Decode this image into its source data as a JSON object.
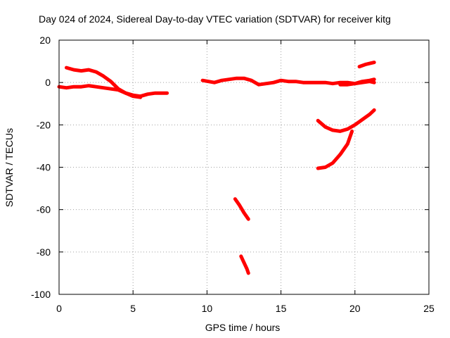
{
  "chart_data": {
    "type": "line",
    "title": "Day 024 of 2024, Sidereal Day-to-day VTEC variation (SDTVAR) for receiver kitg",
    "xlabel": "GPS time / hours",
    "ylabel": "SDTVAR / TECUs",
    "xlim": [
      0,
      25
    ],
    "ylim": [
      -100,
      20
    ],
    "xticks": [
      0,
      5,
      10,
      15,
      20,
      25
    ],
    "yticks": [
      -100,
      -80,
      -60,
      -40,
      -20,
      0,
      20
    ],
    "grid": true,
    "color": "#ff0000",
    "series": [
      {
        "x": [
          0.0,
          0.5,
          1.0,
          1.5,
          2.0,
          2.5,
          3.0,
          3.5,
          4.0,
          4.5,
          5.0,
          5.5,
          6.0,
          6.5,
          7.0,
          7.3
        ],
        "y": [
          -2,
          -2.5,
          -2,
          -2,
          -1.5,
          -2,
          -2.5,
          -3,
          -3.5,
          -5,
          -6,
          -6.5,
          -5.5,
          -5,
          -5,
          -5
        ]
      },
      {
        "x": [
          0.5,
          1.0,
          1.5,
          2.0,
          2.5,
          3.0,
          3.5,
          4.0,
          4.5,
          5.0,
          5.5
        ],
        "y": [
          7,
          6,
          5.5,
          6,
          5,
          3,
          0.5,
          -3,
          -5,
          -6.5,
          -7
        ]
      },
      {
        "x": [
          9.7,
          10.5,
          11.0,
          11.5,
          12.0,
          12.5,
          13.0,
          13.5,
          14.0,
          14.5,
          15.0,
          15.5,
          16.0,
          16.5,
          17.0,
          17.5,
          18.0,
          18.5,
          19.0,
          19.5,
          20.0,
          20.5,
          21.0,
          21.3
        ],
        "y": [
          1,
          0,
          1,
          1.5,
          2,
          2,
          1,
          -1,
          -0.5,
          0,
          1,
          0.5,
          0.5,
          0,
          0,
          0,
          0,
          -0.5,
          0,
          0,
          -0.5,
          0,
          0.5,
          0
        ]
      },
      {
        "x": [
          19.0,
          19.5,
          20.0,
          20.5,
          21.0,
          21.3
        ],
        "y": [
          -1,
          -1,
          -0.5,
          0.5,
          1,
          1.5
        ]
      },
      {
        "x": [
          20.3,
          20.7,
          21.0,
          21.3
        ],
        "y": [
          7.5,
          8.5,
          9,
          9.5
        ]
      },
      {
        "x": [
          17.5,
          18.0,
          18.5,
          19.0,
          19.5,
          20.0,
          20.5,
          21.0,
          21.3
        ],
        "y": [
          -18,
          -21,
          -22.5,
          -23,
          -22,
          -20,
          -17.5,
          -15,
          -13
        ]
      },
      {
        "x": [
          17.5,
          18.0,
          18.5,
          19.0,
          19.5,
          19.8
        ],
        "y": [
          -40.5,
          -40,
          -38,
          -34,
          -29,
          -23
        ]
      },
      {
        "x": [
          11.9,
          12.2,
          12.5,
          12.8
        ],
        "y": [
          -55,
          -58,
          -61.5,
          -64.5
        ]
      },
      {
        "x": [
          12.3,
          12.5,
          12.7,
          12.8
        ],
        "y": [
          -82,
          -85,
          -88,
          -90
        ]
      }
    ]
  }
}
